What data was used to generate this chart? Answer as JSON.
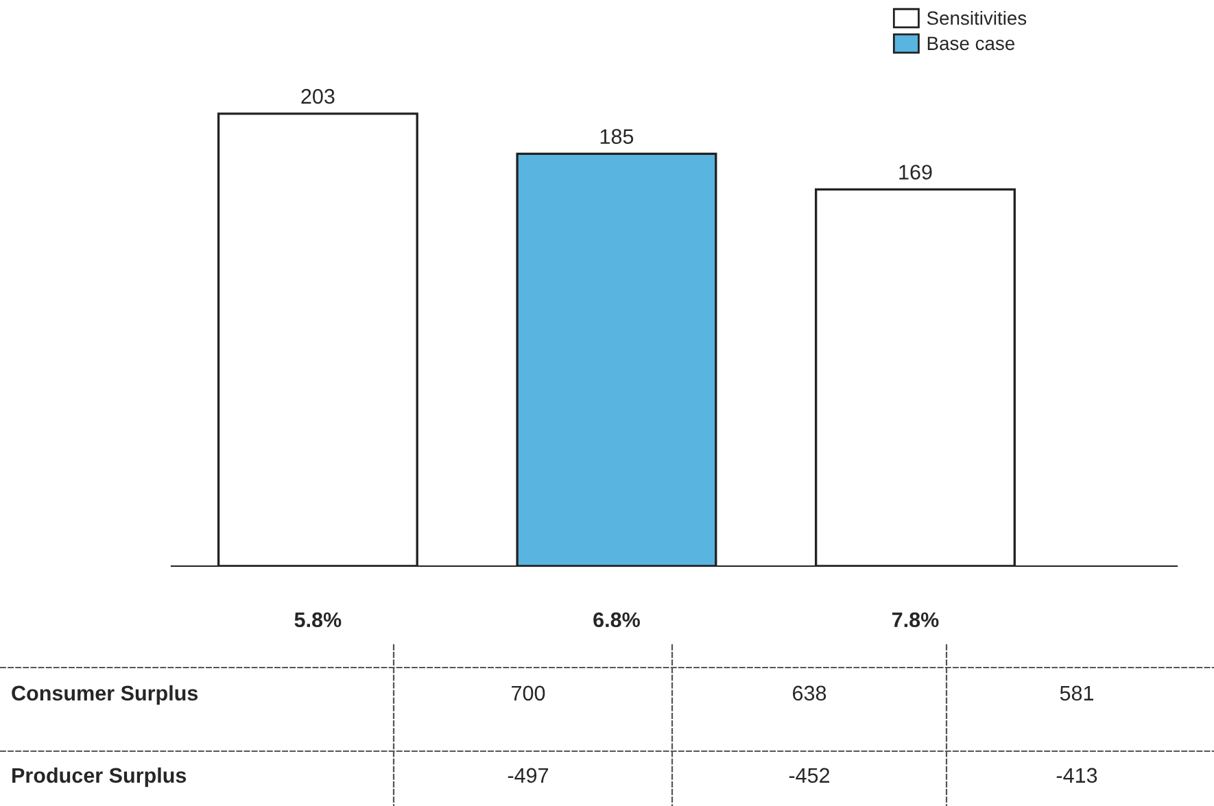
{
  "chart_data": {
    "type": "bar",
    "categories": [
      "5.8%",
      "6.8%",
      "7.8%"
    ],
    "series": [
      {
        "name": "Sensitivities",
        "color": "#ffffff",
        "values": [
          203,
          null,
          169
        ]
      },
      {
        "name": "Base case",
        "color": "#5ab4e0",
        "values": [
          null,
          185,
          null
        ]
      }
    ],
    "data_labels": true,
    "legend": "top right",
    "grid": false,
    "annotations": [
      "Consumer Surplus",
      "700",
      "638",
      "581",
      "Producer Surplus",
      "-497",
      "-452",
      "-413"
    ]
  }
}
